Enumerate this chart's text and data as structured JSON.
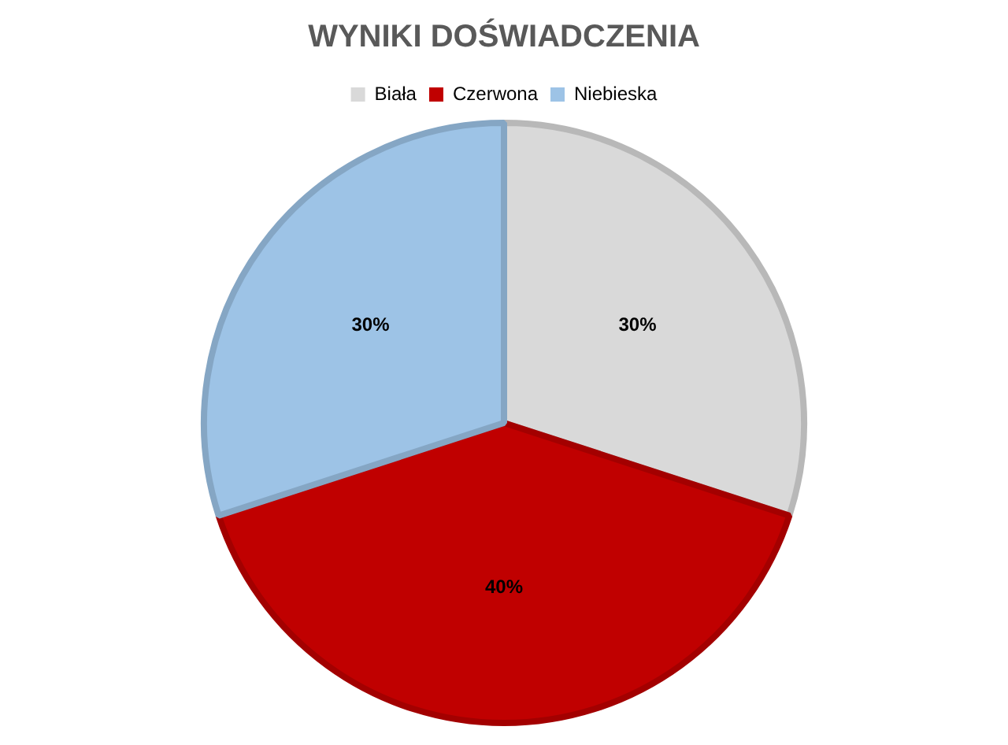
{
  "chart_data": {
    "type": "pie",
    "title": "WYNIKI DOŚWIADCZENIA",
    "categories": [
      "Biała",
      "Czerwona",
      "Niebieska"
    ],
    "values": [
      30,
      40,
      30
    ],
    "colors": [
      "#d9d9d9",
      "#c00000",
      "#9dc3e6"
    ],
    "legend": "top",
    "value_labels": [
      "30%",
      "40%",
      "30%"
    ]
  }
}
